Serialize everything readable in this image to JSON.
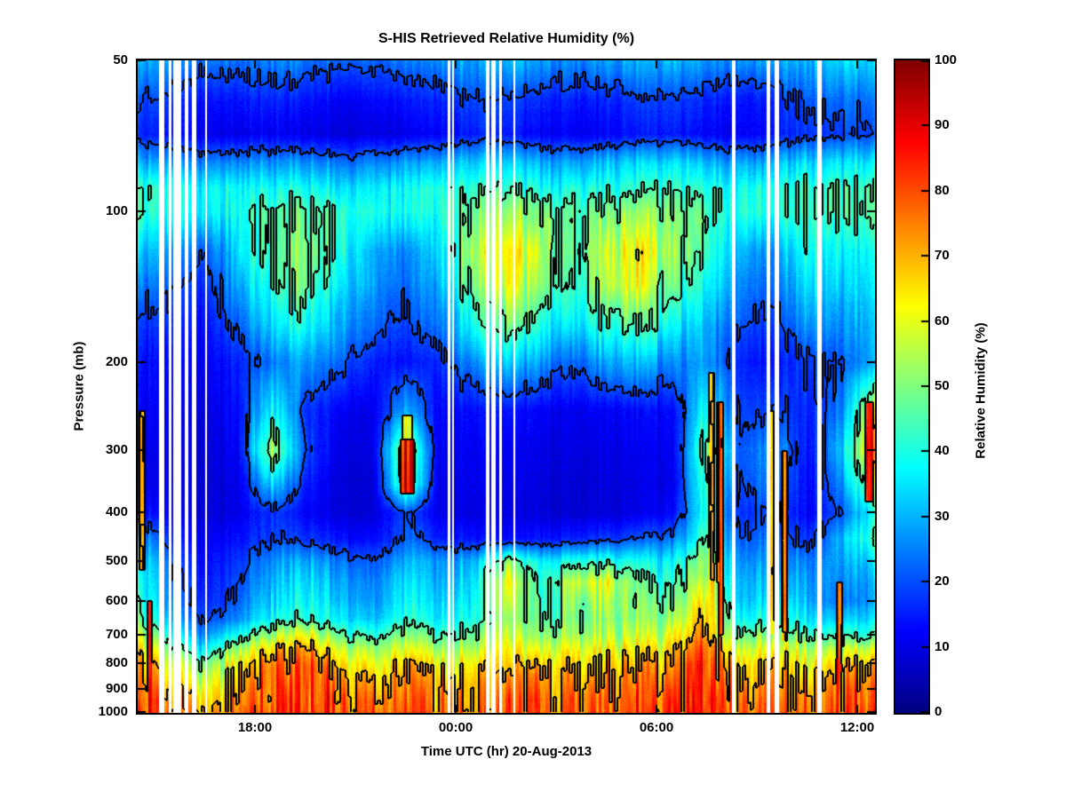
{
  "title": "S-HIS Retrieved Relative Humidity (%)",
  "xlabel": "Time UTC (hr) 20-Aug-2013",
  "ylabel": "Pressure (mb)",
  "colorbar": {
    "label": "Relative Humidity (%)",
    "min": 0,
    "max": 100
  },
  "chart_data": {
    "type": "heatmap",
    "title": "S-HIS Retrieved Relative Humidity (%)",
    "xlabel": "Time UTC (hr) 20-Aug-2013",
    "ylabel": "Pressure (mb)",
    "colorbar_label": "Relative Humidity (%)",
    "colormap": "jet",
    "value_range": [
      0,
      100
    ],
    "y_scale": "log",
    "x_axis": {
      "range_hours": [
        14.5,
        36.5
      ],
      "ticks": [
        {
          "hour": 18,
          "label": "18:00"
        },
        {
          "hour": 24,
          "label": "00:00"
        },
        {
          "hour": 30,
          "label": "06:00"
        },
        {
          "hour": 36,
          "label": "12:00"
        }
      ]
    },
    "y_axis": {
      "range_mb": [
        50,
        1000
      ],
      "ticks": [
        50,
        100,
        200,
        300,
        400,
        500,
        600,
        700,
        800,
        900,
        1000
      ]
    },
    "colorbar_ticks": [
      0,
      10,
      20,
      30,
      40,
      50,
      60,
      70,
      80,
      90,
      100
    ],
    "x_hours": [
      14.5,
      15.5,
      16.5,
      17.5,
      18.5,
      19.5,
      20.5,
      21.5,
      22.5,
      23.5,
      24.5,
      25.5,
      26.5,
      27.5,
      28.5,
      29.5,
      30.5,
      31.5,
      32.5,
      33.5,
      34.5,
      35.5,
      36.5
    ],
    "pressures_mb": [
      50,
      60,
      70,
      80,
      90,
      100,
      120,
      140,
      170,
      200,
      250,
      300,
      350,
      400,
      450,
      500,
      550,
      600,
      650,
      700,
      750,
      800,
      850,
      900,
      950,
      1000
    ],
    "rh_grid": [
      [
        30,
        26,
        22,
        24,
        26,
        24,
        22,
        22,
        24,
        26,
        30,
        30,
        28,
        26,
        28,
        30,
        30,
        28,
        26,
        28,
        32,
        32,
        34
      ],
      [
        20,
        16,
        13,
        14,
        16,
        14,
        12,
        12,
        14,
        16,
        20,
        18,
        16,
        14,
        16,
        18,
        18,
        16,
        14,
        16,
        22,
        22,
        24
      ],
      [
        16,
        13,
        10,
        10,
        12,
        10,
        9,
        9,
        10,
        12,
        16,
        14,
        12,
        11,
        12,
        14,
        14,
        12,
        11,
        14,
        18,
        18,
        20
      ],
      [
        30,
        27,
        25,
        26,
        28,
        27,
        25,
        25,
        27,
        30,
        34,
        32,
        30,
        28,
        31,
        33,
        33,
        31,
        28,
        31,
        35,
        34,
        36
      ],
      [
        42,
        39,
        36,
        38,
        40,
        39,
        37,
        36,
        37,
        41,
        45,
        43,
        40,
        38,
        42,
        43,
        43,
        41,
        38,
        41,
        45,
        43,
        45
      ],
      [
        42,
        38,
        35,
        40,
        46,
        48,
        44,
        40,
        38,
        42,
        50,
        52,
        48,
        44,
        50,
        52,
        48,
        44,
        40,
        42,
        46,
        44,
        46
      ],
      [
        32,
        26,
        20,
        35,
        46,
        52,
        42,
        30,
        25,
        34,
        55,
        62,
        54,
        44,
        58,
        62,
        50,
        44,
        30,
        26,
        40,
        36,
        40
      ],
      [
        26,
        20,
        15,
        30,
        43,
        48,
        38,
        27,
        22,
        30,
        50,
        58,
        52,
        40,
        55,
        58,
        45,
        38,
        26,
        22,
        36,
        32,
        36
      ],
      [
        18,
        15,
        12,
        22,
        34,
        40,
        30,
        22,
        18,
        24,
        40,
        46,
        40,
        32,
        42,
        45,
        35,
        30,
        20,
        17,
        28,
        26,
        32
      ],
      [
        14,
        12,
        10,
        16,
        24,
        28,
        22,
        15,
        13,
        17,
        27,
        32,
        27,
        21,
        29,
        31,
        24,
        28,
        16,
        13,
        20,
        20,
        30
      ],
      [
        12,
        10,
        9,
        14,
        40,
        18,
        12,
        10,
        30,
        12,
        14,
        13,
        12,
        10,
        12,
        13,
        12,
        40,
        18,
        20,
        15,
        25,
        60
      ],
      [
        10,
        9,
        8,
        12,
        55,
        20,
        10,
        9,
        55,
        11,
        12,
        11,
        10,
        9,
        10,
        11,
        11,
        50,
        20,
        30,
        14,
        30,
        70
      ],
      [
        10,
        9,
        8,
        10,
        35,
        15,
        9,
        8,
        50,
        10,
        11,
        10,
        9,
        8,
        9,
        10,
        10,
        45,
        18,
        28,
        13,
        25,
        55
      ],
      [
        15,
        10,
        8,
        10,
        18,
        12,
        9,
        8,
        20,
        10,
        10,
        9,
        9,
        8,
        9,
        10,
        12,
        40,
        16,
        22,
        12,
        20,
        40
      ],
      [
        30,
        15,
        10,
        14,
        20,
        18,
        14,
        12,
        22,
        15,
        14,
        12,
        14,
        15,
        18,
        20,
        22,
        45,
        20,
        25,
        18,
        30,
        45
      ],
      [
        38,
        20,
        12,
        18,
        28,
        30,
        25,
        20,
        30,
        28,
        30,
        50,
        35,
        40,
        42,
        38,
        35,
        55,
        25,
        30,
        25,
        28,
        35
      ],
      [
        40,
        22,
        14,
        20,
        32,
        35,
        30,
        24,
        35,
        30,
        35,
        60,
        40,
        55,
        60,
        45,
        40,
        60,
        28,
        35,
        28,
        25,
        30
      ],
      [
        42,
        25,
        15,
        22,
        35,
        38,
        33,
        26,
        38,
        32,
        38,
        55,
        42,
        50,
        55,
        48,
        45,
        65,
        30,
        40,
        30,
        22,
        28
      ],
      [
        45,
        28,
        18,
        26,
        40,
        42,
        38,
        30,
        42,
        36,
        42,
        50,
        45,
        48,
        52,
        50,
        50,
        70,
        35,
        45,
        35,
        30,
        35
      ],
      [
        55,
        35,
        25,
        40,
        55,
        60,
        50,
        40,
        50,
        45,
        50,
        55,
        50,
        52,
        55,
        55,
        58,
        75,
        45,
        55,
        45,
        40,
        45
      ],
      [
        65,
        45,
        35,
        55,
        68,
        72,
        62,
        52,
        60,
        55,
        58,
        62,
        58,
        60,
        62,
        62,
        65,
        80,
        55,
        65,
        55,
        55,
        60
      ],
      [
        72,
        55,
        45,
        65,
        75,
        78,
        70,
        60,
        68,
        62,
        65,
        68,
        65,
        66,
        68,
        68,
        70,
        82,
        62,
        72,
        62,
        65,
        70
      ],
      [
        75,
        60,
        52,
        70,
        78,
        80,
        74,
        66,
        72,
        68,
        70,
        72,
        70,
        70,
        72,
        72,
        74,
        82,
        66,
        75,
        66,
        70,
        74
      ],
      [
        78,
        65,
        58,
        74,
        80,
        82,
        77,
        70,
        75,
        72,
        74,
        75,
        73,
        73,
        75,
        75,
        77,
        84,
        70,
        78,
        70,
        74,
        78
      ],
      [
        80,
        70,
        62,
        76,
        82,
        83,
        79,
        73,
        77,
        74,
        76,
        77,
        75,
        75,
        77,
        77,
        79,
        85,
        73,
        80,
        73,
        76,
        80
      ],
      [
        82,
        72,
        65,
        78,
        83,
        84,
        80,
        75,
        78,
        76,
        77,
        78,
        76,
        76,
        78,
        78,
        80,
        85,
        75,
        81,
        75,
        78,
        82
      ]
    ],
    "contour_levels": [
      20,
      45,
      70
    ],
    "missing_data_time_stripes": [
      {
        "t": 15.22,
        "w": 6
      },
      {
        "t": 15.45,
        "w": 3
      },
      {
        "t": 15.68,
        "w": 9
      },
      {
        "t": 15.95,
        "w": 4
      },
      {
        "t": 16.18,
        "w": 5
      },
      {
        "t": 16.55,
        "w": 2
      },
      {
        "t": 23.78,
        "w": 3
      },
      {
        "t": 23.92,
        "w": 2
      },
      {
        "t": 24.95,
        "w": 4
      },
      {
        "t": 25.12,
        "w": 5
      },
      {
        "t": 25.32,
        "w": 3
      },
      {
        "t": 25.75,
        "w": 2
      },
      {
        "t": 32.32,
        "w": 4
      },
      {
        "t": 33.35,
        "w": 4
      },
      {
        "t": 33.58,
        "w": 5
      },
      {
        "t": 34.85,
        "w": 5
      }
    ],
    "high_rh_streaks": [
      {
        "t": 14.62,
        "p1": 250,
        "p2": 520,
        "v": 72,
        "w": 5
      },
      {
        "t": 14.85,
        "p1": 600,
        "p2": 1000,
        "v": 82,
        "w": 4
      },
      {
        "t": 22.55,
        "p1": 285,
        "p2": 365,
        "v": 86,
        "w": 14
      },
      {
        "t": 22.55,
        "p1": 255,
        "p2": 285,
        "v": 60,
        "w": 10
      },
      {
        "t": 31.62,
        "p1": 210,
        "p2": 720,
        "v": 68,
        "w": 5
      },
      {
        "t": 31.88,
        "p1": 240,
        "p2": 700,
        "v": 74,
        "w": 6
      },
      {
        "t": 33.42,
        "p1": 250,
        "p2": 700,
        "v": 66,
        "w": 5
      },
      {
        "t": 33.8,
        "p1": 300,
        "p2": 720,
        "v": 70,
        "w": 5
      },
      {
        "t": 35.45,
        "p1": 550,
        "p2": 1000,
        "v": 78,
        "w": 5
      },
      {
        "t": 36.35,
        "p1": 240,
        "p2": 380,
        "v": 88,
        "w": 8
      }
    ]
  }
}
